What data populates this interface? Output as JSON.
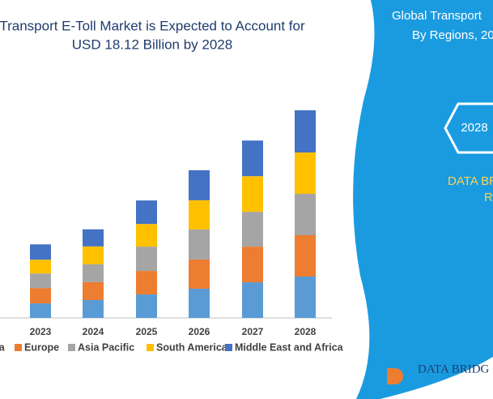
{
  "chart_data": {
    "type": "bar",
    "stacked": true,
    "title_lines": [
      "Transport E-Toll Market is Expected to Account for",
      "USD 18.12 Billion by 2028"
    ],
    "categories": [
      "2023",
      "2024",
      "2025",
      "2026",
      "2027",
      "2028"
    ],
    "series": [
      {
        "name": "North America",
        "color": "#5b9bd5",
        "values": [
          1.27,
          1.56,
          2.05,
          2.55,
          3.11,
          3.61
        ]
      },
      {
        "name": "Europe",
        "color": "#ed7d31",
        "values": [
          1.34,
          1.56,
          2.05,
          2.55,
          3.11,
          3.61
        ]
      },
      {
        "name": "Asia Pacific",
        "color": "#a5a5a5",
        "values": [
          1.27,
          1.56,
          2.12,
          2.62,
          3.04,
          3.61
        ]
      },
      {
        "name": "South America",
        "color": "#ffc000",
        "values": [
          1.2,
          1.56,
          1.98,
          2.55,
          3.11,
          3.61
        ]
      },
      {
        "name": "Middle East and Africa",
        "color": "#4472c4",
        "values": [
          1.34,
          1.49,
          2.05,
          2.62,
          3.11,
          3.68
        ]
      }
    ]
  },
  "panel": {
    "title_lines": [
      "Global Transport",
      "By Regions, 20"
    ],
    "badge": "2028",
    "label_lines": [
      "DATA BR",
      "R"
    ],
    "logo": "DATA BRIDG"
  }
}
